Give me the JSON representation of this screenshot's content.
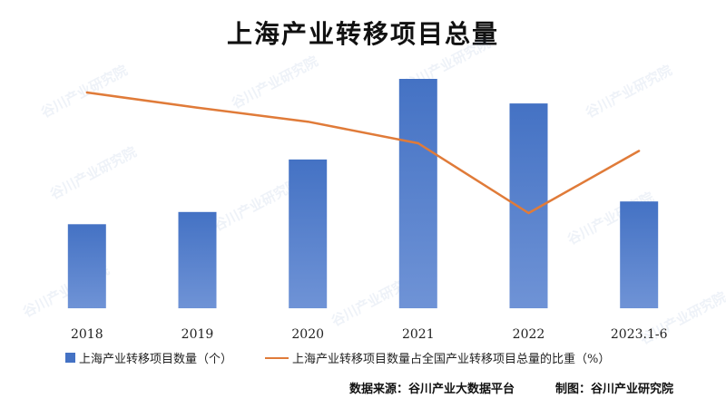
{
  "watermark_text": "谷川产业研究院",
  "colors": {
    "bar": "#4472C4",
    "bar_light": "#6F93D6",
    "line": "#E07B39"
  },
  "chart_data": {
    "type": "bar",
    "title": "上海产业转移项目总量",
    "categories": [
      "2018",
      "2019",
      "2020",
      "2021",
      "2022",
      "2023.1-6"
    ],
    "series": [
      {
        "name": "上海产业转移项目数量（个）",
        "type": "bar",
        "axis": "left",
        "values": [
          96,
          110,
          170,
          262,
          234,
          122
        ]
      },
      {
        "name": "上海产业转移项目数量占全国产业转移项目总量的比重（%）",
        "type": "line",
        "axis": "right",
        "values": [
          17.0,
          15.8,
          14.7,
          13.0,
          7.5,
          12.4
        ]
      }
    ],
    "ylim_left": [
      0,
      290
    ],
    "ylim_right": [
      0,
      20
    ],
    "grid": false,
    "legend_position": "bottom"
  },
  "footer": {
    "source": "数据来源：谷川产业大数据平台",
    "credit": "制图：谷川产业研究院"
  }
}
